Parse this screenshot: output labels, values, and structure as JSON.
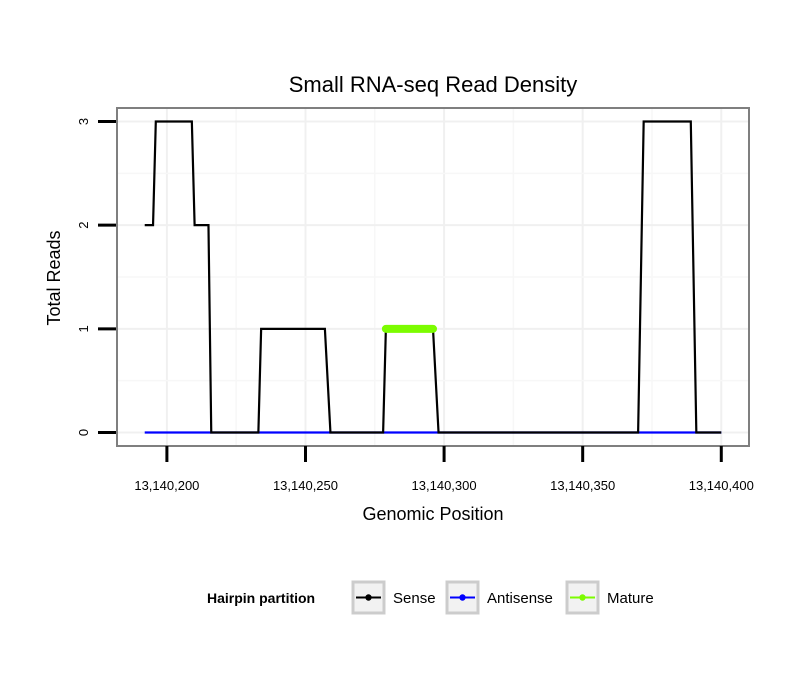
{
  "chart_data": {
    "type": "line",
    "title": "Small RNA-seq Read Density",
    "xlabel": "Genomic Position",
    "ylabel": "Total Reads",
    "xlim": [
      13140182,
      13140410
    ],
    "ylim": [
      -0.13,
      3.13
    ],
    "x_ticks": [
      13140200,
      13140250,
      13140300,
      13140350,
      13140400
    ],
    "x_tick_labels": [
      "13,140,200",
      "13,140,250",
      "13,140,300",
      "13,140,350",
      "13,140,400"
    ],
    "y_ticks": [
      0,
      1,
      2,
      3
    ],
    "y_tick_labels": [
      "0",
      "1",
      "2",
      "3"
    ],
    "grid": true,
    "legend": {
      "title": "Hairpin partition",
      "position": "bottom",
      "entries": [
        {
          "name": "Sense",
          "color": "#000000"
        },
        {
          "name": "Antisense",
          "color": "#0000ff"
        },
        {
          "name": "Mature",
          "color": "#7cfc00"
        }
      ]
    },
    "series": [
      {
        "name": "Sense",
        "color": "#000000",
        "points": [
          [
            13140192,
            2
          ],
          [
            13140195,
            2
          ],
          [
            13140196,
            3
          ],
          [
            13140209,
            3
          ],
          [
            13140210,
            2
          ],
          [
            13140215,
            2
          ],
          [
            13140216,
            0
          ],
          [
            13140233,
            0
          ],
          [
            13140234,
            1
          ],
          [
            13140257,
            1
          ],
          [
            13140259,
            0
          ],
          [
            13140278,
            0
          ],
          [
            13140279,
            1
          ],
          [
            13140296,
            1
          ],
          [
            13140298,
            0
          ],
          [
            13140370,
            0
          ],
          [
            13140372,
            3
          ],
          [
            13140389,
            3
          ],
          [
            13140391,
            0
          ],
          [
            13140400,
            0
          ]
        ]
      },
      {
        "name": "Antisense",
        "color": "#0000ff",
        "points": [
          [
            13140192,
            0
          ],
          [
            13140400,
            0
          ]
        ]
      },
      {
        "name": "Mature",
        "color": "#7cfc00",
        "points": [
          [
            13140279,
            1
          ],
          [
            13140296,
            1
          ]
        ]
      }
    ]
  }
}
